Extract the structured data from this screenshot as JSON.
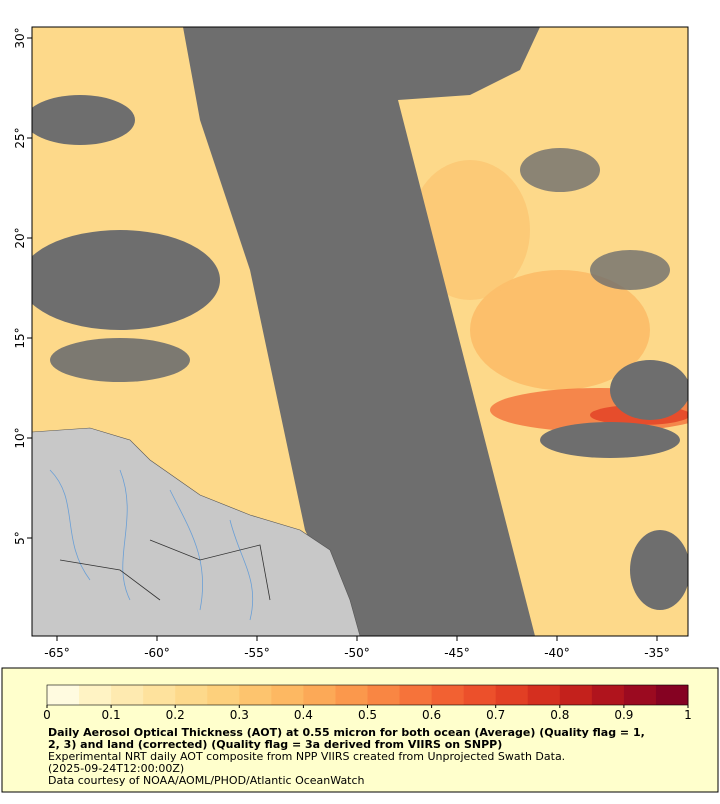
{
  "map": {
    "lonlim": [
      -66.25,
      -33.45
    ],
    "latlim": [
      0.1,
      30.55
    ],
    "lon_ticks": [
      {
        "value": -65,
        "label": "-65°"
      },
      {
        "value": -60,
        "label": "-60°"
      },
      {
        "value": -55,
        "label": "-55°"
      },
      {
        "value": -50,
        "label": "-50°"
      },
      {
        "value": -45,
        "label": "-45°"
      },
      {
        "value": -40,
        "label": "-40°"
      },
      {
        "value": -35,
        "label": "-35°"
      }
    ],
    "lat_ticks": [
      {
        "value": 5,
        "label": "5°"
      },
      {
        "value": 10,
        "label": "10°"
      },
      {
        "value": 15,
        "label": "15°"
      },
      {
        "value": 20,
        "label": "20°"
      },
      {
        "value": 25,
        "label": "25°"
      },
      {
        "value": 30,
        "label": "30°"
      }
    ]
  },
  "colorbar": {
    "lim": [
      0,
      1
    ],
    "ticks": [
      0,
      0.1,
      0.2,
      0.3,
      0.4,
      0.5,
      0.6,
      0.7,
      0.8,
      0.9,
      1
    ],
    "colors": [
      "#fffbe0",
      "#fff3c4",
      "#feeab0",
      "#fee29d",
      "#fdd98b",
      "#fdd07c",
      "#fdc46e",
      "#fdb862",
      "#fca957",
      "#fb984c",
      "#f98643",
      "#f6733a",
      "#f26132",
      "#ec502b",
      "#e23f24",
      "#d52f1f",
      "#c4211c",
      "#b0141d",
      "#9b0a20",
      "#850222"
    ]
  },
  "caption": {
    "title_lines": [
      "Daily Aerosol Optical Thickness (AOT) at 0.55 micron for both ocean (Average) (Quality flag = 1,",
      "2, 3) and land (corrected) (Quality flag = 3a derived from VIIRS on SNPP)"
    ],
    "lines": [
      "Experimental NRT daily AOT composite from NPP VIIRS created from Unprojected Swath Data.",
      "(2025-09-24T12:00:00Z)",
      "Data courtesy of NOAA/AOML/PHOD/Atlantic OceanWatch"
    ]
  }
}
